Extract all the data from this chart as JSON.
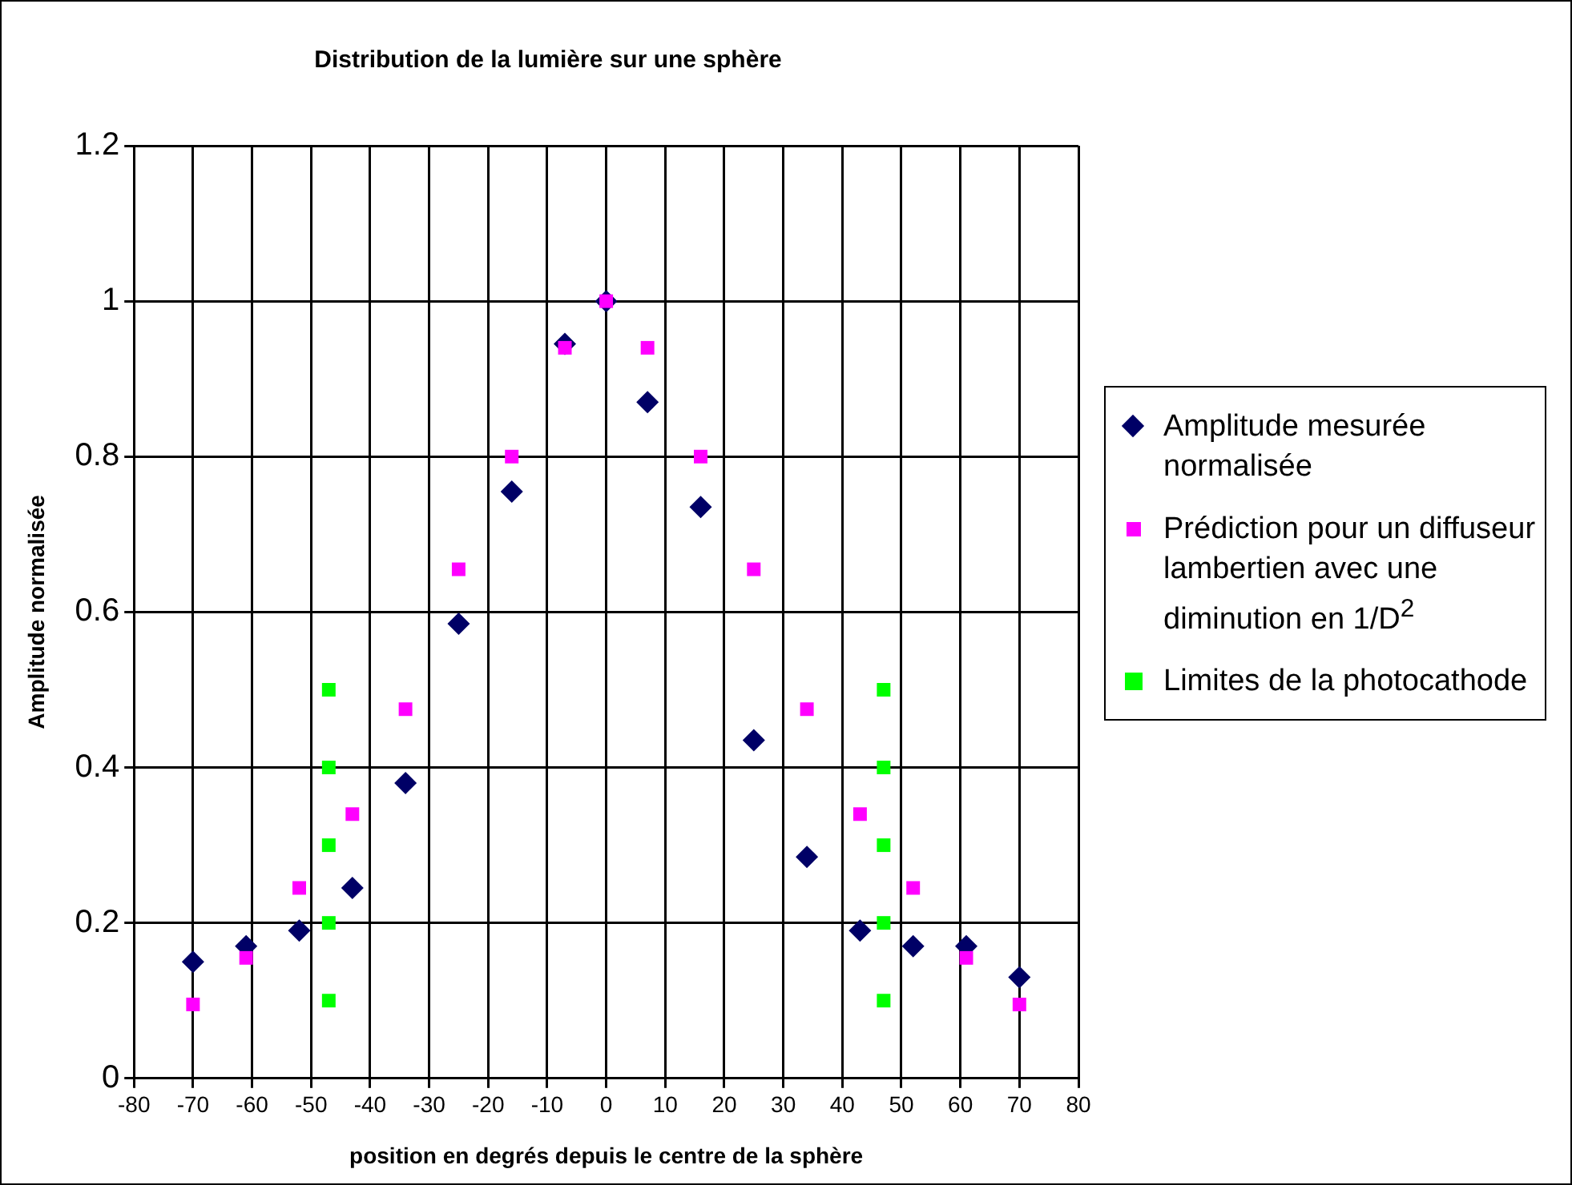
{
  "chart_data": {
    "type": "scatter",
    "title": "Distribution de la lumière sur une sphère",
    "xlabel": "position en degrés depuis le centre de la sphère",
    "ylabel": "Amplitude normalisée",
    "xlim": [
      -80,
      80
    ],
    "xticks": [
      -80,
      -70,
      -60,
      -50,
      -40,
      -30,
      -20,
      -10,
      0,
      10,
      20,
      30,
      40,
      50,
      60,
      70,
      80
    ],
    "ylim": [
      0,
      1.2
    ],
    "yticks": [
      0,
      0.2,
      0.4,
      0.6,
      0.8,
      1,
      1.2
    ],
    "grid": true,
    "legend": "right",
    "series": [
      {
        "name": "Amplitude mesurée normalisée",
        "color": "#000066",
        "marker": "diamond",
        "x": [
          -70,
          -61,
          -52,
          -43,
          -34,
          -25,
          -16,
          -7,
          0,
          7,
          16,
          25,
          34,
          43,
          52,
          61,
          70
        ],
        "values": [
          0.15,
          0.17,
          0.19,
          0.245,
          0.38,
          0.585,
          0.755,
          0.945,
          1.0,
          0.87,
          0.735,
          0.435,
          0.285,
          0.19,
          0.17,
          0.17,
          0.13
        ]
      },
      {
        "name": "Prédiction pour un diffuseur lambertien avec une diminution en 1/D$^{2}$",
        "color": "#ff00ff",
        "marker": "square",
        "x": [
          -70,
          -61,
          -52,
          -43,
          -34,
          -25,
          -16,
          -7,
          0,
          7,
          16,
          25,
          34,
          43,
          52,
          61,
          70
        ],
        "values": [
          0.095,
          0.155,
          0.245,
          0.34,
          0.475,
          0.655,
          0.8,
          0.94,
          1.0,
          0.94,
          0.8,
          0.655,
          0.475,
          0.34,
          0.245,
          0.155,
          0.095
        ]
      },
      {
        "name": "Limites de la photocathode",
        "color": "#00ff00",
        "marker": "square",
        "x": [
          -47,
          -47,
          -47,
          -47,
          -47,
          47,
          47,
          47,
          47,
          47
        ],
        "values": [
          0.1,
          0.2,
          0.3,
          0.4,
          0.5,
          0.1,
          0.2,
          0.3,
          0.4,
          0.5
        ]
      }
    ]
  }
}
